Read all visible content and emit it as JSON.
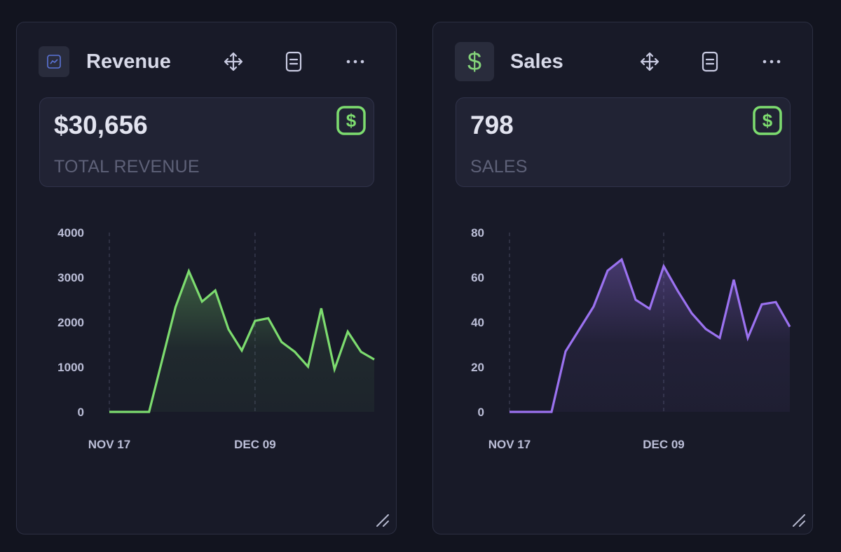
{
  "cards": [
    {
      "id": "revenue",
      "title": "Revenue",
      "header_icon": "chart-line-icon",
      "actions": [
        "move-icon",
        "document-icon",
        "more-icon"
      ],
      "stat_value": "$30,656",
      "stat_label": "TOTAL REVENUE",
      "stat_icon": "dollar-badge-icon",
      "accent": "#7ddc6f"
    },
    {
      "id": "sales",
      "title": "Sales",
      "header_icon": "dollar-icon",
      "actions": [
        "move-icon",
        "document-icon",
        "more-icon"
      ],
      "stat_value": "798",
      "stat_label": "SALES",
      "stat_icon": "dollar-badge-icon",
      "accent": "#9b72f0"
    }
  ],
  "chart_data": [
    {
      "type": "area",
      "title": "Revenue",
      "xlabel": "",
      "ylabel": "",
      "ylim": [
        0,
        4000
      ],
      "yticks": [
        "0",
        "1000",
        "2000",
        "3000",
        "4000"
      ],
      "xtick_labels": [
        {
          "index": 0,
          "label": "NOV 17"
        },
        {
          "index": 11,
          "label": "DEC 09"
        }
      ],
      "grid": "vertical dashed at x ticks",
      "color": "#7ddc6f",
      "values": [
        0,
        0,
        0,
        0,
        1170,
        2340,
        3140,
        2460,
        2710,
        1840,
        1370,
        2030,
        2090,
        1560,
        1340,
        1010,
        2310,
        950,
        1790,
        1340,
        1170
      ]
    },
    {
      "type": "area",
      "title": "Sales",
      "xlabel": "",
      "ylabel": "",
      "ylim": [
        0,
        80
      ],
      "yticks": [
        "0",
        "20",
        "40",
        "60",
        "80"
      ],
      "xtick_labels": [
        {
          "index": 0,
          "label": "NOV 17"
        },
        {
          "index": 11,
          "label": "DEC 09"
        }
      ],
      "grid": "vertical dashed at x ticks",
      "color": "#9b72f0",
      "values": [
        0,
        0,
        0,
        0,
        27,
        37,
        47,
        63,
        68,
        50,
        46,
        65,
        54,
        44,
        37,
        33,
        59,
        33,
        48,
        49,
        38
      ]
    }
  ]
}
